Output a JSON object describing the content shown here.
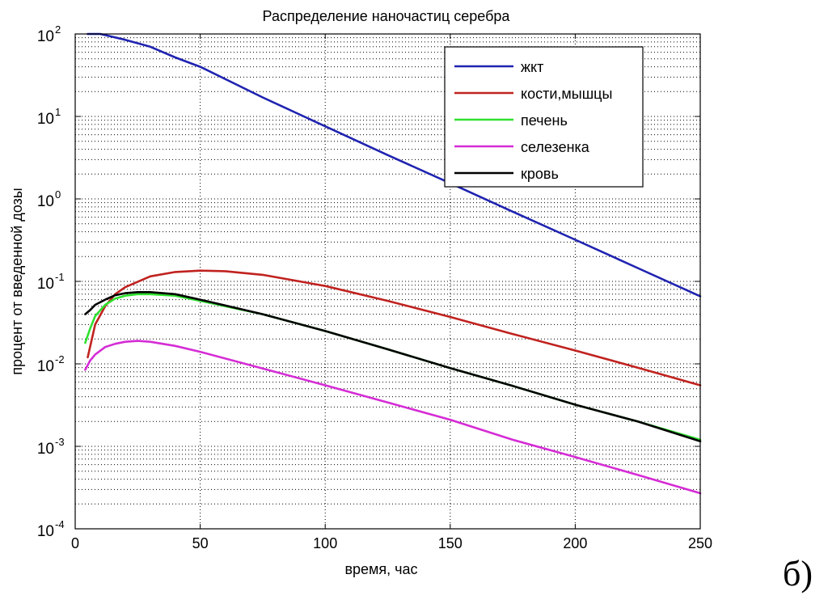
{
  "panel_label": "б)",
  "chart_data": {
    "type": "line",
    "title": "Распределение наночастиц серебра",
    "xlabel": "время, час",
    "ylabel": "процент от введенной дозы",
    "xlim": [
      0,
      250
    ],
    "ylim": [
      0.0001,
      100
    ],
    "yscale": "log",
    "grid": true,
    "legend_position": "top-right",
    "x_ticks": [
      0,
      50,
      100,
      150,
      200,
      250
    ],
    "y_ticks": [
      {
        "value": 0.0001,
        "base": "10",
        "exp": "-4"
      },
      {
        "value": 0.001,
        "base": "10",
        "exp": "-3"
      },
      {
        "value": 0.01,
        "base": "10",
        "exp": "-2"
      },
      {
        "value": 0.1,
        "base": "10",
        "exp": "-1"
      },
      {
        "value": 1,
        "base": "10",
        "exp": "0"
      },
      {
        "value": 10,
        "base": "10",
        "exp": "1"
      },
      {
        "value": 100,
        "base": "10",
        "exp": "2"
      }
    ],
    "series": [
      {
        "name": "жкт",
        "color": "#1f23b0",
        "x": [
          5,
          10,
          20,
          30,
          40,
          50,
          75,
          100,
          125,
          150,
          175,
          200,
          225,
          250
        ],
        "y": [
          100,
          100,
          85,
          70,
          52,
          40,
          17,
          7.6,
          3.4,
          1.55,
          0.7,
          0.32,
          0.145,
          0.066
        ]
      },
      {
        "name": "кости,мышцы",
        "color": "#c0221f",
        "x": [
          5,
          8,
          12,
          16,
          20,
          30,
          40,
          50,
          60,
          75,
          100,
          125,
          150,
          175,
          200,
          225,
          250
        ],
        "y": [
          0.012,
          0.03,
          0.05,
          0.07,
          0.085,
          0.115,
          0.13,
          0.135,
          0.133,
          0.12,
          0.088,
          0.058,
          0.037,
          0.023,
          0.0145,
          0.009,
          0.0055
        ]
      },
      {
        "name": "печень",
        "color": "#2fe02f",
        "x": [
          4,
          6,
          8,
          12,
          16,
          20,
          25,
          30,
          40,
          50,
          75,
          100,
          125,
          150,
          175,
          200,
          225,
          250
        ],
        "y": [
          0.018,
          0.027,
          0.038,
          0.052,
          0.062,
          0.067,
          0.07,
          0.07,
          0.067,
          0.058,
          0.04,
          0.025,
          0.015,
          0.0089,
          0.0054,
          0.0032,
          0.002,
          0.0012
        ]
      },
      {
        "name": "селезенка",
        "color": "#d52cd5",
        "x": [
          4,
          6,
          8,
          12,
          16,
          20,
          25,
          30,
          40,
          50,
          75,
          100,
          125,
          150,
          175,
          200,
          225,
          250
        ],
        "y": [
          0.0085,
          0.011,
          0.013,
          0.016,
          0.0175,
          0.0185,
          0.019,
          0.0185,
          0.0165,
          0.014,
          0.0088,
          0.0055,
          0.0034,
          0.0021,
          0.0012,
          0.00074,
          0.00045,
          0.00027
        ]
      },
      {
        "name": "кровь",
        "color": "#000000",
        "x": [
          4,
          6,
          8,
          12,
          16,
          20,
          25,
          30,
          40,
          50,
          75,
          100,
          125,
          150,
          175,
          200,
          225,
          250
        ],
        "y": [
          0.04,
          0.045,
          0.052,
          0.06,
          0.068,
          0.072,
          0.074,
          0.074,
          0.07,
          0.06,
          0.04,
          0.025,
          0.015,
          0.0089,
          0.0054,
          0.0032,
          0.002,
          0.00115
        ]
      }
    ]
  }
}
